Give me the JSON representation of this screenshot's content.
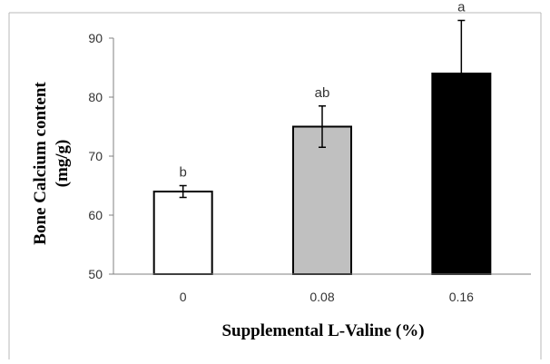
{
  "chart_data": {
    "type": "bar",
    "title": "",
    "xlabel": "Supplemental  L-Valine (%)",
    "ylabel_lines": [
      "Bone  Calcium content",
      "(mg/g)"
    ],
    "categories": [
      "0",
      "0.08",
      "0.16"
    ],
    "values": [
      64,
      75,
      84
    ],
    "errors": [
      1,
      3.5,
      9
    ],
    "significance": [
      "b",
      "ab",
      "a"
    ],
    "bar_colors": [
      "#ffffff",
      "#c0c0c0",
      "#000000"
    ],
    "ylim": [
      50,
      90
    ],
    "yticks": [
      "50",
      "60",
      "70",
      "80",
      "90"
    ],
    "grid": false,
    "legend": "none"
  }
}
